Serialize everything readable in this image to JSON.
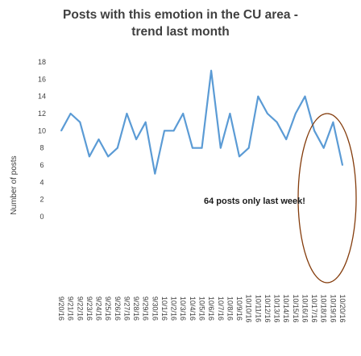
{
  "chart_data": {
    "type": "line",
    "title_lines": [
      "Posts with this emotion in the CU area -",
      "trend last month"
    ],
    "ylabel": "Number of posts",
    "xlabel": "",
    "ylim": [
      0,
      18
    ],
    "yticks": [
      0,
      2,
      4,
      6,
      8,
      10,
      12,
      14,
      16,
      18
    ],
    "x": [
      "9/20/16",
      "9/21/16",
      "9/22/16",
      "9/23/16",
      "9/24/16",
      "9/25/16",
      "9/26/16",
      "9/27/16",
      "9/28/16",
      "9/29/16",
      "9/30/16",
      "10/1/16",
      "10/2/16",
      "10/3/16",
      "10/4/16",
      "10/5/16",
      "10/6/16",
      "10/7/16",
      "10/8/16",
      "10/9/16",
      "10/10/16",
      "10/11/16",
      "10/12/16",
      "10/13/16",
      "10/14/16",
      "10/15/16",
      "10/16/16",
      "10/17/16",
      "10/18/16",
      "10/19/16",
      "10/20/16"
    ],
    "series": [
      {
        "values": [
          10,
          12,
          11,
          7,
          9,
          7,
          8,
          12,
          9,
          11,
          5,
          10,
          10,
          12,
          8,
          8,
          17,
          8,
          12,
          7,
          8,
          14,
          12,
          11,
          9,
          12,
          14,
          10,
          8,
          11,
          6
        ]
      }
    ],
    "annotation": "64 posts only last week!",
    "grid": false,
    "colors": {
      "line": "#5b9bd5",
      "highlight_ellipse": "#843c0c",
      "text": "#404040"
    }
  }
}
